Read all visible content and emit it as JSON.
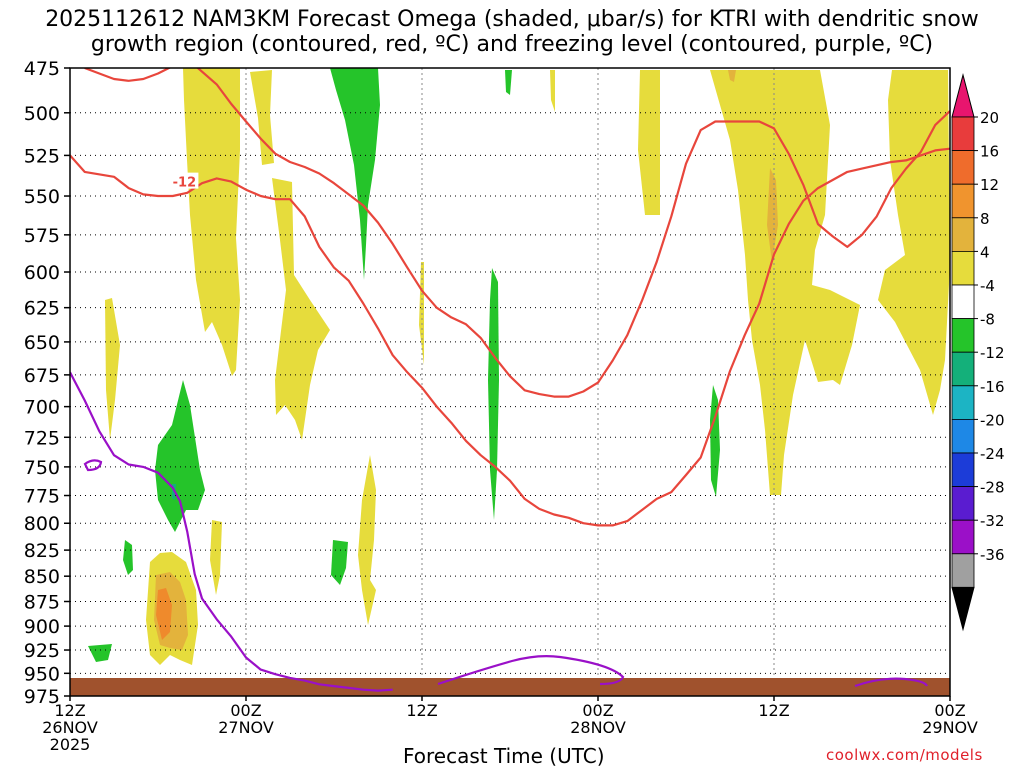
{
  "title_line1": "2025112612 NAM3KM Forecast Omega (shaded, μbar/s) for KTRI with dendritic snow",
  "title_line2": "growth region (contoured, red, ºC) and freezing level (contoured, purple, ºC)",
  "credit": "coolwx.com/models",
  "chart_data": {
    "type": "contour-timeheight",
    "xlabel": "Forecast Time (UTC)",
    "ylabel": "",
    "x_ticks": [
      {
        "l1": "12Z",
        "l2": "26NOV",
        "l3": "2025"
      },
      {
        "l1": "00Z",
        "l2": "27NOV",
        "l3": ""
      },
      {
        "l1": "12Z",
        "l2": "",
        "l3": ""
      },
      {
        "l1": "00Z",
        "l2": "28NOV",
        "l3": ""
      },
      {
        "l1": "12Z",
        "l2": "",
        "l3": ""
      },
      {
        "l1": "00Z",
        "l2": "29NOV",
        "l3": ""
      }
    ],
    "x_hours": [
      0,
      12,
      24,
      36,
      48,
      60
    ],
    "xlim_hours": [
      0,
      60
    ],
    "y_ticks": [
      475,
      500,
      525,
      550,
      575,
      600,
      625,
      650,
      675,
      700,
      725,
      750,
      775,
      800,
      825,
      850,
      875,
      900,
      925,
      950,
      975
    ],
    "ylim_hPa": [
      475,
      975
    ],
    "y_scale": "log-pressure",
    "grid": true,
    "colorbar": {
      "labels": [
        "20",
        "16",
        "12",
        "8",
        "4",
        "-4",
        "-8",
        "-12",
        "-16",
        "-20",
        "-24",
        "-28",
        "-32",
        "-36"
      ],
      "colors": [
        "#e83c3c",
        "#ef6c2c",
        "#f0942e",
        "#e3b33c",
        "#e6dc3c",
        "#ffffff",
        "#25c42a",
        "#14b07a",
        "#1cb4c4",
        "#1e88e6",
        "#1c3cd8",
        "#5a1cd0",
        "#9b10c8",
        "#a0a0a0"
      ],
      "top_color": "#e8156e",
      "bottom_color": "#000000"
    },
    "contour_labels": [
      "-12"
    ],
    "colors": {
      "dgz": "#e8463c",
      "freezing": "#9a10c8",
      "terrain": "#a0522d"
    },
    "dgz_top": [
      [
        0,
        525
      ],
      [
        1,
        535
      ],
      [
        3,
        538
      ],
      [
        4,
        545
      ],
      [
        5,
        549
      ],
      [
        6,
        550
      ],
      [
        7,
        550
      ],
      [
        8,
        548
      ],
      [
        9,
        542
      ],
      [
        10,
        539
      ],
      [
        11,
        541
      ],
      [
        12,
        546
      ],
      [
        13,
        550
      ],
      [
        14,
        552
      ],
      [
        15,
        552
      ],
      [
        16,
        563
      ],
      [
        17,
        583
      ],
      [
        18,
        597
      ],
      [
        19,
        606
      ],
      [
        20,
        622
      ],
      [
        21,
        640
      ],
      [
        22,
        660
      ],
      [
        23,
        673
      ],
      [
        24,
        685
      ],
      [
        25,
        700
      ],
      [
        26,
        713
      ],
      [
        27,
        728
      ],
      [
        28,
        740
      ],
      [
        29,
        750
      ],
      [
        30,
        762
      ],
      [
        31,
        778
      ],
      [
        32,
        787
      ],
      [
        33,
        792
      ],
      [
        34,
        795
      ],
      [
        35,
        800
      ],
      [
        36,
        802
      ],
      [
        37,
        802
      ],
      [
        38,
        798
      ],
      [
        39,
        788
      ],
      [
        40,
        778
      ],
      [
        41,
        772
      ],
      [
        42,
        757
      ],
      [
        43,
        742
      ],
      [
        44,
        708
      ],
      [
        45,
        672
      ],
      [
        46,
        645
      ],
      [
        47,
        622
      ],
      [
        48,
        588
      ],
      [
        49,
        568
      ],
      [
        50,
        553
      ],
      [
        51,
        545
      ],
      [
        53,
        535
      ],
      [
        54,
        533
      ],
      [
        56,
        529
      ],
      [
        57,
        528
      ],
      [
        58,
        525
      ],
      [
        59,
        522
      ],
      [
        60,
        521
      ]
    ],
    "dgz_bottom": [
      [
        1,
        475
      ],
      [
        2,
        478
      ],
      [
        3,
        481
      ],
      [
        4,
        482
      ],
      [
        5,
        481
      ],
      [
        6,
        478
      ],
      [
        8,
        470
      ],
      [
        10,
        484
      ],
      [
        11,
        495
      ],
      [
        12,
        505
      ],
      [
        13,
        515
      ],
      [
        14,
        524
      ],
      [
        15,
        529
      ],
      [
        16,
        532
      ],
      [
        17,
        536
      ],
      [
        18,
        542
      ],
      [
        19,
        549
      ],
      [
        20,
        556
      ],
      [
        21,
        567
      ],
      [
        22,
        581
      ],
      [
        23,
        597
      ],
      [
        24,
        613
      ],
      [
        25,
        625
      ],
      [
        26,
        632
      ],
      [
        27,
        637
      ],
      [
        28,
        647
      ],
      [
        29,
        662
      ],
      [
        30,
        676
      ],
      [
        31,
        687
      ],
      [
        32,
        690
      ],
      [
        33,
        692
      ],
      [
        34,
        692
      ],
      [
        35,
        688
      ],
      [
        36,
        681
      ],
      [
        37,
        664
      ],
      [
        38,
        645
      ],
      [
        39,
        620
      ],
      [
        40,
        593
      ],
      [
        41,
        563
      ],
      [
        42,
        530
      ],
      [
        43,
        510
      ],
      [
        44,
        505
      ],
      [
        45,
        505
      ],
      [
        46,
        505
      ],
      [
        47,
        505
      ],
      [
        48,
        509
      ],
      [
        49,
        524
      ],
      [
        50,
        543
      ],
      [
        51,
        568
      ],
      [
        52,
        576
      ],
      [
        53,
        583
      ],
      [
        54,
        575
      ],
      [
        55,
        563
      ],
      [
        56,
        545
      ],
      [
        57,
        533
      ],
      [
        58,
        523
      ],
      [
        59,
        507
      ],
      [
        60,
        499
      ]
    ],
    "freezing_level": [
      [
        0,
        673
      ],
      [
        1,
        695
      ],
      [
        2,
        720
      ],
      [
        3,
        740
      ],
      [
        4,
        748
      ],
      [
        5,
        750
      ],
      [
        6,
        755
      ],
      [
        7,
        768
      ],
      [
        7.5,
        780
      ],
      [
        8,
        808
      ],
      [
        8.5,
        848
      ],
      [
        9,
        872
      ],
      [
        10,
        893
      ],
      [
        11,
        911
      ],
      [
        12,
        933
      ],
      [
        13,
        946
      ],
      [
        14,
        951
      ],
      [
        15,
        955
      ],
      [
        16,
        958
      ],
      [
        17,
        962
      ],
      [
        18,
        964
      ],
      [
        19,
        966
      ],
      [
        20,
        968
      ],
      [
        21,
        969
      ],
      [
        22,
        968
      ]
    ]
  }
}
